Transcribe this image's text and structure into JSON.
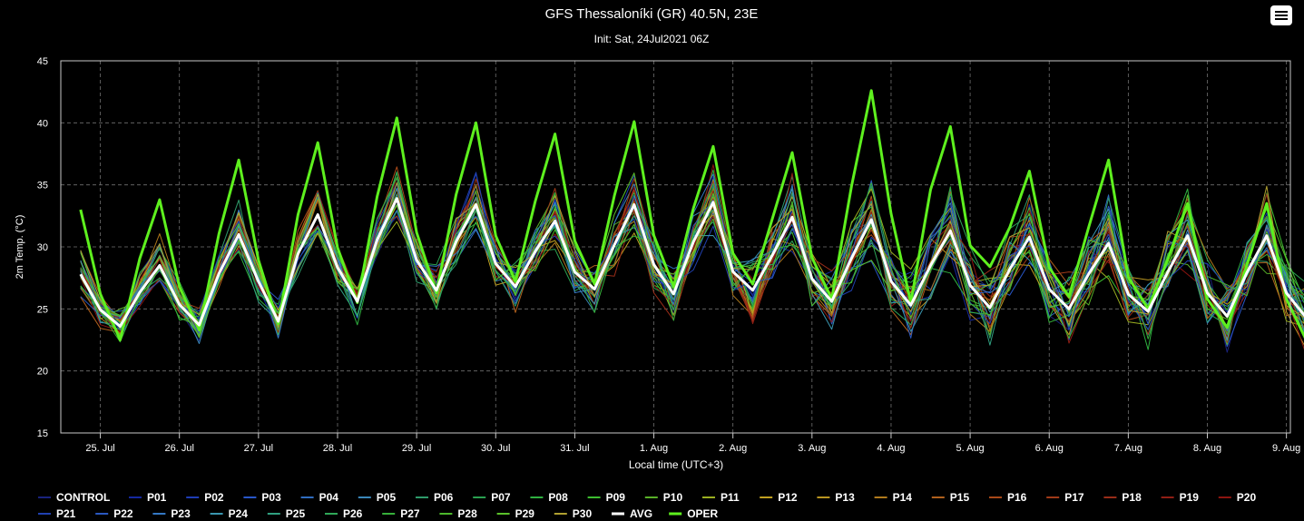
{
  "header": {
    "title": "GFS Thessaloníki (GR) 40.5N, 23E",
    "subtitle": "Init: Sat, 24Jul2021 06Z"
  },
  "menu_icon": "hamburger-menu-icon",
  "chart_data": {
    "type": "line",
    "title": "GFS Thessaloníki (GR) 40.5N, 23E",
    "subtitle": "Init: Sat, 24Jul2021 06Z",
    "xlabel": "Local time (UTC+3)",
    "ylabel": "2m Temp. (°C)",
    "ylim": [
      15,
      45
    ],
    "yticks": [
      15,
      20,
      25,
      30,
      35,
      40,
      45
    ],
    "xlim_days": [
      24.5,
      40.05
    ],
    "xticks": [
      {
        "day": 25,
        "label": "25. Jul"
      },
      {
        "day": 26,
        "label": "26. Jul"
      },
      {
        "day": 27,
        "label": "27. Jul"
      },
      {
        "day": 28,
        "label": "28. Jul"
      },
      {
        "day": 29,
        "label": "29. Jul"
      },
      {
        "day": 30,
        "label": "30. Jul"
      },
      {
        "day": 31,
        "label": "31. Jul"
      },
      {
        "day": 32,
        "label": "1. Aug"
      },
      {
        "day": 33,
        "label": "2. Aug"
      },
      {
        "day": 34,
        "label": "3. Aug"
      },
      {
        "day": 35,
        "label": "4. Aug"
      },
      {
        "day": 36,
        "label": "5. Aug"
      },
      {
        "day": 37,
        "label": "6. Aug"
      },
      {
        "day": 38,
        "label": "7. Aug"
      },
      {
        "day": 39,
        "label": "8. Aug"
      },
      {
        "day": 40,
        "label": "9. Aug"
      }
    ],
    "grid": true,
    "legend_position": "bottom",
    "background": "#000000",
    "daily": {
      "avg_min": [
        23.6,
        23.7,
        24.0,
        25.6,
        26.5,
        26.8,
        26.6,
        26.2,
        26.5,
        25.6,
        25.3,
        25.1,
        25.0,
        24.8,
        24.4,
        24.3
      ],
      "avg_max": [
        27.8,
        28.5,
        31.0,
        32.6,
        33.9,
        33.4,
        32.1,
        33.4,
        33.6,
        32.4,
        32.2,
        31.3,
        30.8,
        30.3,
        30.9
      ],
      "oper_min": [
        22.5,
        23.3,
        23.8,
        25.5,
        26.3,
        27.2,
        27.0,
        26.8,
        27.0,
        25.8,
        25.5,
        28.4,
        26.0,
        25.0,
        23.5,
        22.5
      ],
      "oper_max": [
        33.0,
        33.8,
        37.0,
        38.4,
        40.4,
        40.0,
        39.1,
        40.1,
        38.1,
        37.6,
        42.6,
        39.7,
        36.1,
        37.0,
        33.5
      ]
    },
    "series": [
      {
        "name": "CONTROL",
        "color": "#1a237e"
      },
      {
        "name": "P01",
        "color": "#1428a0"
      },
      {
        "name": "P02",
        "color": "#1e3cb4"
      },
      {
        "name": "P03",
        "color": "#2856c8"
      },
      {
        "name": "P04",
        "color": "#2f6cbf"
      },
      {
        "name": "P05",
        "color": "#3a86b8"
      },
      {
        "name": "P06",
        "color": "#2e9a6a"
      },
      {
        "name": "P07",
        "color": "#2aa050"
      },
      {
        "name": "P08",
        "color": "#2fb040"
      },
      {
        "name": "P09",
        "color": "#3cbc30"
      },
      {
        "name": "P10",
        "color": "#58b028"
      },
      {
        "name": "P11",
        "color": "#9aae20"
      },
      {
        "name": "P12",
        "color": "#c0a020"
      },
      {
        "name": "P13",
        "color": "#b89420"
      },
      {
        "name": "P14",
        "color": "#b07a1c"
      },
      {
        "name": "P15",
        "color": "#b0601c"
      },
      {
        "name": "P16",
        "color": "#a84818"
      },
      {
        "name": "P17",
        "color": "#a03a18"
      },
      {
        "name": "P18",
        "color": "#982c18"
      },
      {
        "name": "P19",
        "color": "#901e14"
      },
      {
        "name": "P20",
        "color": "#8c1410"
      },
      {
        "name": "P21",
        "color": "#2040b0"
      },
      {
        "name": "P22",
        "color": "#2a58c0"
      },
      {
        "name": "P23",
        "color": "#3478c4"
      },
      {
        "name": "P24",
        "color": "#3a96b0"
      },
      {
        "name": "P25",
        "color": "#30a080"
      },
      {
        "name": "P26",
        "color": "#2fa858"
      },
      {
        "name": "P27",
        "color": "#36b03a"
      },
      {
        "name": "P28",
        "color": "#4cb82c"
      },
      {
        "name": "P29",
        "color": "#5ac02a"
      },
      {
        "name": "P30",
        "color": "#b0a030"
      },
      {
        "name": "AVG",
        "color": "#ffffff"
      },
      {
        "name": "OPER",
        "color": "#5ef01e"
      }
    ]
  }
}
